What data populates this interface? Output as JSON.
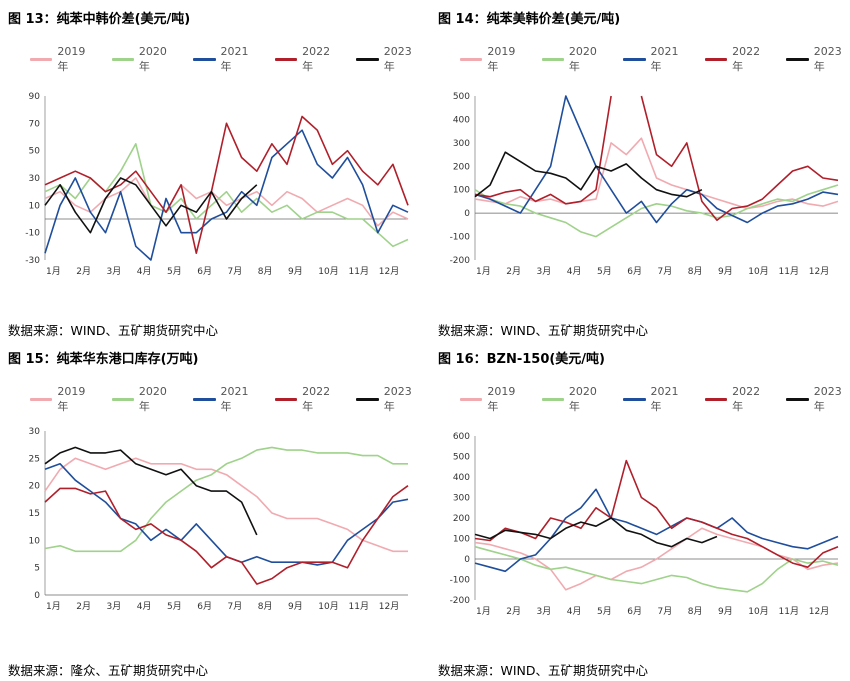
{
  "series_colors": {
    "2019年": "#f0aab0",
    "2020年": "#9fd28a",
    "2021年": "#1f4e9c",
    "2022年": "#b01f2a",
    "2023年": "#111111"
  },
  "panels": [
    {
      "title": "图 13：纯苯中韩价差(美元/吨)",
      "source": "数据来源：WIND、五矿期货研究中心"
    },
    {
      "title": "图 14：纯苯美韩价差(美元/吨)",
      "source": "数据来源：WIND、五矿期货研究中心"
    },
    {
      "title": "图 15：纯苯华东港口库存(万吨)",
      "source": "数据来源：隆众、五矿期货研究中心"
    },
    {
      "title": "图 16：BZN-150(美元/吨)",
      "source": "数据来源：WIND、五矿期货研究中心"
    }
  ],
  "chart_data": [
    {
      "type": "line",
      "title": "图 13：纯苯中韩价差(美元/吨)",
      "xlabel": "",
      "ylabel": "",
      "x_ticks": [
        "1月",
        "2月",
        "3月",
        "4月",
        "5月",
        "6月",
        "7月",
        "8月",
        "9月",
        "10月",
        "11月",
        "12月"
      ],
      "ylim": [
        -30,
        90
      ],
      "y_ticks": [
        -30,
        -10,
        10,
        30,
        50,
        70,
        90
      ],
      "x": [
        1,
        1.5,
        2,
        2.5,
        3,
        3.5,
        4,
        4.5,
        5,
        5.5,
        6,
        6.5,
        7,
        7.5,
        8,
        8.5,
        9,
        9.5,
        10,
        10.5,
        11,
        11.5,
        12,
        12.5,
        13
      ],
      "series": [
        {
          "name": "2019年",
          "values": [
            15,
            20,
            10,
            5,
            15,
            20,
            30,
            10,
            5,
            25,
            15,
            20,
            10,
            15,
            20,
            10,
            20,
            15,
            5,
            10,
            15,
            10,
            -5,
            5,
            0
          ]
        },
        {
          "name": "2020年",
          "values": [
            20,
            25,
            15,
            30,
            20,
            35,
            55,
            10,
            5,
            15,
            0,
            10,
            20,
            5,
            15,
            5,
            10,
            0,
            5,
            5,
            0,
            0,
            -10,
            -20,
            -15
          ]
        },
        {
          "name": "2021年",
          "values": [
            -25,
            10,
            30,
            5,
            -10,
            20,
            -20,
            -30,
            15,
            -10,
            -10,
            0,
            5,
            20,
            10,
            45,
            55,
            65,
            40,
            30,
            45,
            25,
            -10,
            10,
            5
          ]
        },
        {
          "name": "2022年",
          "values": [
            25,
            30,
            35,
            30,
            20,
            25,
            35,
            20,
            5,
            25,
            -25,
            20,
            70,
            45,
            35,
            55,
            40,
            75,
            65,
            40,
            50,
            35,
            25,
            40,
            10
          ]
        },
        {
          "name": "2023年",
          "values": [
            10,
            25,
            5,
            -10,
            15,
            30,
            25,
            10,
            -5,
            10,
            5,
            20,
            0,
            15,
            25,
            null,
            null,
            null,
            null,
            null,
            null,
            null,
            null,
            null,
            null
          ]
        }
      ]
    },
    {
      "type": "line",
      "title": "图 14：纯苯美韩价差(美元/吨)",
      "xlabel": "",
      "ylabel": "",
      "x_ticks": [
        "1月",
        "2月",
        "3月",
        "4月",
        "5月",
        "6月",
        "7月",
        "8月",
        "9月",
        "10月",
        "11月",
        "12月"
      ],
      "ylim": [
        -200,
        500
      ],
      "y_ticks": [
        -200,
        -100,
        0,
        100,
        200,
        300,
        400,
        500
      ],
      "x": [
        1,
        1.5,
        2,
        2.5,
        3,
        3.5,
        4,
        4.5,
        5,
        5.5,
        6,
        6.5,
        7,
        7.5,
        8,
        8.5,
        9,
        9.5,
        10,
        10.5,
        11,
        11.5,
        12,
        12.5,
        13
      ],
      "series": [
        {
          "name": "2019年",
          "values": [
            60,
            50,
            40,
            70,
            50,
            60,
            40,
            50,
            60,
            300,
            250,
            320,
            150,
            120,
            100,
            80,
            60,
            40,
            20,
            30,
            50,
            60,
            40,
            30,
            50
          ]
        },
        {
          "name": "2020年",
          "values": [
            100,
            60,
            40,
            30,
            0,
            -20,
            -40,
            -80,
            -100,
            -60,
            -20,
            20,
            40,
            30,
            10,
            0,
            -20,
            -10,
            20,
            40,
            60,
            50,
            80,
            100,
            120
          ]
        },
        {
          "name": "2021年",
          "values": [
            80,
            60,
            30,
            0,
            100,
            200,
            500,
            350,
            200,
            100,
            0,
            50,
            -40,
            40,
            100,
            80,
            20,
            -10,
            -40,
            0,
            30,
            40,
            60,
            90,
            80
          ]
        },
        {
          "name": "2022年",
          "values": [
            80,
            70,
            90,
            100,
            50,
            80,
            40,
            50,
            100,
            500,
            null,
            500,
            250,
            200,
            300,
            50,
            -30,
            20,
            30,
            60,
            120,
            180,
            200,
            150,
            140
          ]
        },
        {
          "name": "2023年",
          "values": [
            70,
            120,
            260,
            220,
            180,
            170,
            150,
            100,
            200,
            180,
            210,
            150,
            100,
            80,
            70,
            100,
            null,
            null,
            null,
            null,
            null,
            null,
            null,
            null,
            null
          ]
        }
      ]
    },
    {
      "type": "line",
      "title": "图 15：纯苯华东港口库存(万吨)",
      "xlabel": "",
      "ylabel": "",
      "x_ticks": [
        "1月",
        "2月",
        "3月",
        "4月",
        "5月",
        "6月",
        "7月",
        "8月",
        "9月",
        "10月",
        "11月",
        "12月"
      ],
      "ylim": [
        0,
        30
      ],
      "y_ticks": [
        0,
        5,
        10,
        15,
        20,
        25,
        30
      ],
      "x": [
        1,
        1.5,
        2,
        2.5,
        3,
        3.5,
        4,
        4.5,
        5,
        5.5,
        6,
        6.5,
        7,
        7.5,
        8,
        8.5,
        9,
        9.5,
        10,
        10.5,
        11,
        11.5,
        12,
        12.5,
        13
      ],
      "series": [
        {
          "name": "2019年",
          "values": [
            19,
            23,
            25,
            24,
            23,
            24,
            25,
            24,
            24,
            24,
            23,
            23,
            22,
            20,
            18,
            15,
            14,
            14,
            14,
            13,
            12,
            10,
            9,
            8,
            8
          ]
        },
        {
          "name": "2020年",
          "values": [
            8.5,
            9,
            8,
            8,
            8,
            8,
            10,
            14,
            17,
            19,
            21,
            22,
            24,
            25,
            26.5,
            27,
            26.5,
            26.5,
            26,
            26,
            26,
            25.5,
            25.5,
            24,
            24
          ]
        },
        {
          "name": "2021年",
          "values": [
            23,
            24,
            21,
            19,
            17,
            14,
            13,
            10,
            12,
            10,
            13,
            10,
            7,
            6,
            7,
            6,
            6,
            6,
            5.5,
            6,
            10,
            12,
            14,
            17,
            17.5
          ]
        },
        {
          "name": "2022年",
          "values": [
            17,
            19.5,
            19.5,
            18.5,
            19,
            14,
            12,
            13,
            11,
            10,
            8,
            5,
            7,
            6,
            2,
            3,
            5,
            6,
            6,
            6,
            5,
            10,
            14,
            18,
            20
          ]
        },
        {
          "name": "2023年",
          "values": [
            24,
            26,
            27,
            26,
            26,
            26.5,
            24,
            23,
            22,
            23,
            20,
            19,
            19,
            17,
            11,
            null,
            null,
            null,
            null,
            null,
            null,
            null,
            null,
            null,
            null
          ]
        }
      ]
    },
    {
      "type": "line",
      "title": "图 16：BZN-150(美元/吨)",
      "xlabel": "",
      "ylabel": "",
      "x_ticks": [
        "1月",
        "2月",
        "3月",
        "4月",
        "5月",
        "6月",
        "7月",
        "8月",
        "9月",
        "10月",
        "11月",
        "12月"
      ],
      "ylim": [
        -200,
        600
      ],
      "y_ticks": [
        -200,
        -100,
        0,
        100,
        200,
        300,
        400,
        500,
        600
      ],
      "x": [
        1,
        1.5,
        2,
        2.5,
        3,
        3.5,
        4,
        4.5,
        5,
        5.5,
        6,
        6.5,
        7,
        7.5,
        8,
        8.5,
        9,
        9.5,
        10,
        10.5,
        11,
        11.5,
        12,
        12.5,
        13
      ],
      "series": [
        {
          "name": "2019年",
          "values": [
            80,
            70,
            50,
            30,
            0,
            -50,
            -150,
            -120,
            -80,
            -100,
            -60,
            -40,
            0,
            50,
            100,
            150,
            120,
            100,
            80,
            60,
            20,
            0,
            -50,
            -30,
            -20
          ]
        },
        {
          "name": "2020年",
          "values": [
            60,
            40,
            20,
            0,
            -30,
            -50,
            -40,
            -60,
            -80,
            -100,
            -110,
            -120,
            -100,
            -80,
            -90,
            -120,
            -140,
            -150,
            -160,
            -120,
            -50,
            0,
            -20,
            -10,
            -30
          ]
        },
        {
          "name": "2021年",
          "values": [
            -20,
            -40,
            -60,
            0,
            20,
            100,
            200,
            250,
            340,
            200,
            180,
            150,
            120,
            160,
            200,
            180,
            150,
            200,
            130,
            100,
            80,
            60,
            50,
            80,
            110
          ]
        },
        {
          "name": "2022年",
          "values": [
            100,
            90,
            150,
            130,
            100,
            200,
            180,
            150,
            250,
            200,
            480,
            300,
            250,
            150,
            200,
            180,
            150,
            120,
            100,
            60,
            20,
            -20,
            -40,
            30,
            60
          ]
        },
        {
          "name": "2023年",
          "values": [
            120,
            100,
            140,
            130,
            120,
            100,
            150,
            180,
            160,
            200,
            140,
            120,
            80,
            60,
            100,
            80,
            110,
            null,
            null,
            null,
            null,
            null,
            null,
            null,
            null
          ]
        }
      ]
    }
  ]
}
